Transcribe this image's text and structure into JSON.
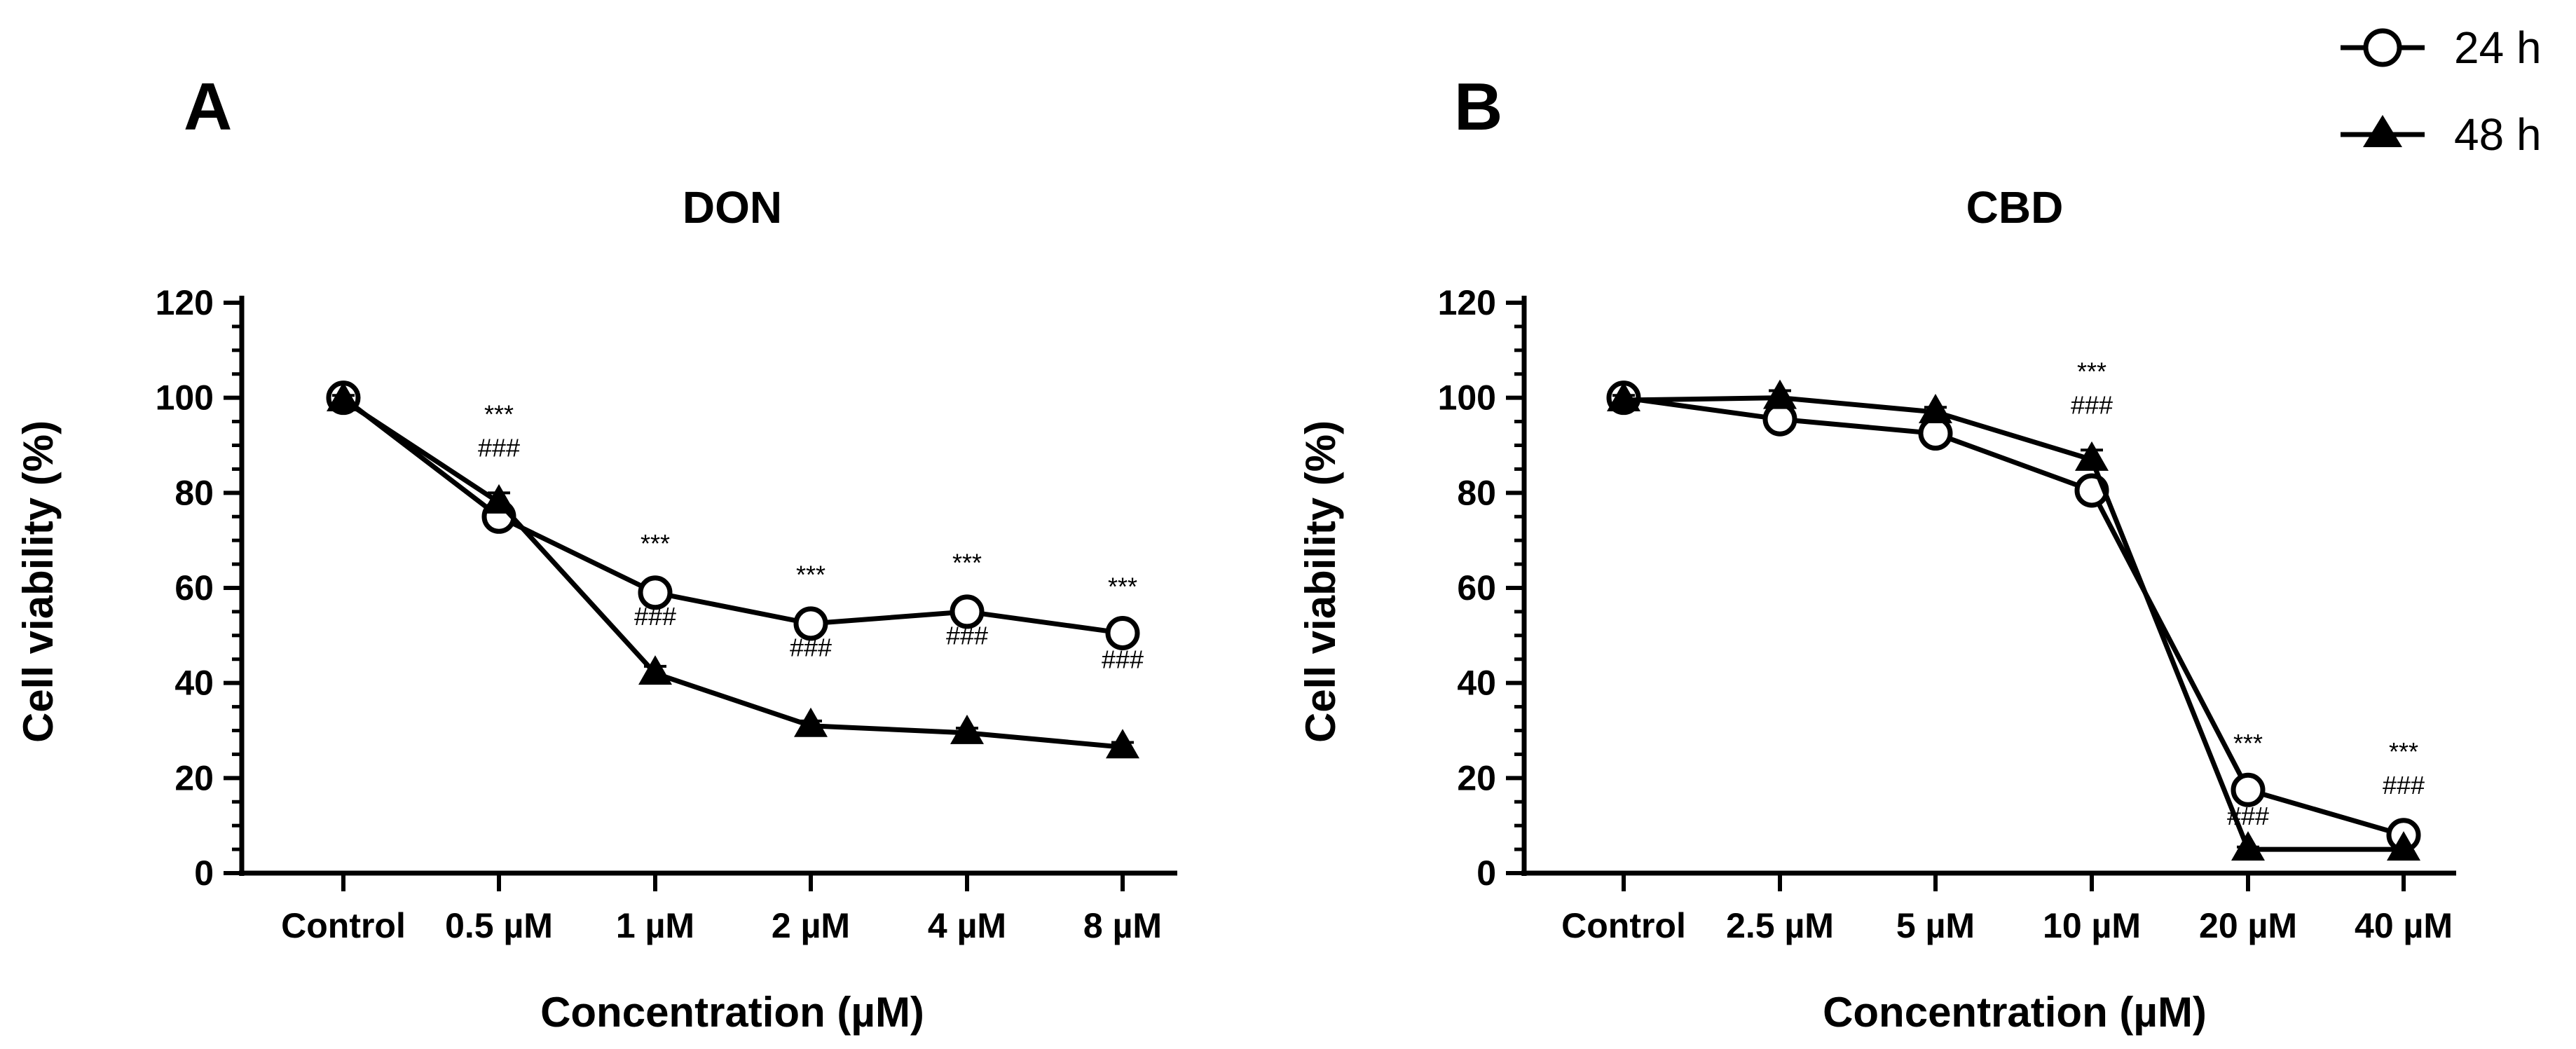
{
  "legend": [
    {
      "label": "24 h",
      "marker": "open-circle"
    },
    {
      "label": "48 h",
      "marker": "filled-triangle"
    }
  ],
  "y_tick_labels": [
    "0",
    "20",
    "40",
    "60",
    "80",
    "100",
    "120"
  ],
  "chart_data": [
    {
      "panel": "A",
      "type": "line",
      "title": "DON",
      "xlabel": "Concentration (µM)",
      "ylabel": "Cell viability (%)",
      "ylim": [
        0,
        120
      ],
      "categories": [
        "Control",
        "0.5 µM",
        "1 µM",
        "2 µM",
        "4 µM",
        "8 µM"
      ],
      "series": [
        {
          "name": "24 h",
          "marker": "open-circle",
          "values": [
            100,
            75,
            59,
            52.5,
            55,
            50.5
          ],
          "errors": [
            1.5,
            2,
            2,
            2,
            2,
            1.5
          ]
        },
        {
          "name": "48 h",
          "marker": "filled-triangle",
          "values": [
            99.5,
            78,
            42,
            31,
            29.5,
            26.5
          ],
          "errors": [
            1,
            2,
            1.5,
            1,
            1,
            1
          ]
        }
      ],
      "annotations": [
        {
          "category": "0.5 µM",
          "above": "***",
          "below": "###"
        },
        {
          "category": "1 µM",
          "above": "***",
          "below": "###"
        },
        {
          "category": "2 µM",
          "above": "***",
          "below": "###"
        },
        {
          "category": "4 µM",
          "above": "***",
          "below": "###"
        },
        {
          "category": "8 µM",
          "above": "***",
          "below": "###"
        }
      ]
    },
    {
      "panel": "B",
      "type": "line",
      "title": "CBD",
      "xlabel": "Concentration (µM)",
      "ylabel": "Cell viability (%)",
      "ylim": [
        0,
        120
      ],
      "categories": [
        "Control",
        "2.5 µM",
        "5 µM",
        "10 µM",
        "20 µM",
        "40 µM"
      ],
      "series": [
        {
          "name": "24 h",
          "marker": "open-circle",
          "values": [
            100,
            95.5,
            92.5,
            80.5,
            17.5,
            8
          ],
          "errors": [
            1.5,
            1.5,
            1.5,
            2,
            1.5,
            1
          ]
        },
        {
          "name": "48 h",
          "marker": "filled-triangle",
          "values": [
            99.5,
            100,
            97,
            87,
            5,
            5
          ],
          "errors": [
            1,
            1.5,
            1,
            2,
            0.5,
            0.5
          ]
        }
      ],
      "annotations": [
        {
          "category": "10 µM",
          "above": "***",
          "below": "###"
        },
        {
          "category": "20 µM",
          "above": "***",
          "below": "###"
        },
        {
          "category": "40 µM",
          "above": "***",
          "below": "###"
        }
      ]
    }
  ]
}
